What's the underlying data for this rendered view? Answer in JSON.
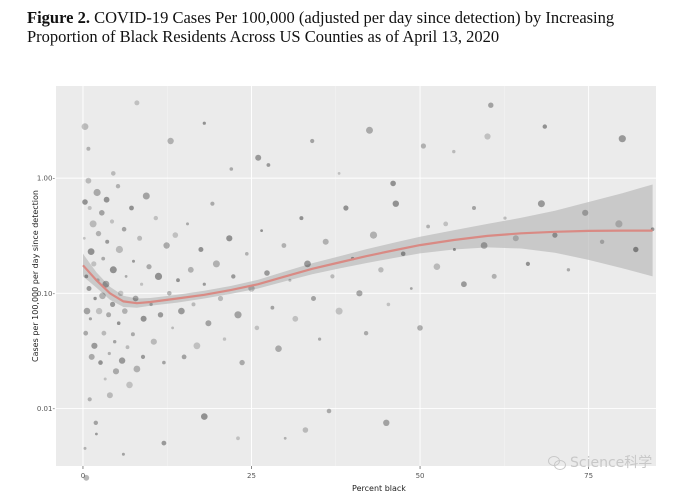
{
  "caption": {
    "label": "Figure 2.",
    "text": "COVID-19 Cases Per 100,000 (adjusted per day since detection) by Increasing Proportion of Black Residents Across US Counties as of April 13, 2020"
  },
  "watermark": "Science科学",
  "chart_data": {
    "type": "scatter",
    "title": "",
    "xlabel": "Percent black",
    "ylabel": "Cases per 100,000 per day since detection",
    "xlim": [
      -4,
      85
    ],
    "ylim_log10": [
      -2.5,
      0.8
    ],
    "y_scale": "log10",
    "x_ticks": [
      0,
      25,
      50,
      75
    ],
    "x_tick_labels": [
      "0",
      "25",
      "50",
      "75"
    ],
    "y_ticks": [
      1.0,
      0.1,
      0.01
    ],
    "y_tick_labels": [
      "1.00-",
      "0.10-",
      "0.01-"
    ],
    "colors": {
      "panel": "#ebebeb",
      "grid": "#ffffff",
      "point": "#000000",
      "trend": "#d98a84",
      "band": "#bdbdbd"
    },
    "points": [
      [
        0.2,
        0.3
      ],
      [
        0.3,
        0.62
      ],
      [
        0.5,
        0.14
      ],
      [
        0.6,
        0.07
      ],
      [
        0.4,
        0.045
      ],
      [
        0.3,
        0.0045
      ],
      [
        0.8,
        0.95
      ],
      [
        1.0,
        0.55
      ],
      [
        1.2,
        0.23
      ],
      [
        0.9,
        0.11
      ],
      [
        1.1,
        0.06
      ],
      [
        1.3,
        0.028
      ],
      [
        1.0,
        0.012
      ],
      [
        1.5,
        0.4
      ],
      [
        1.6,
        0.18
      ],
      [
        1.8,
        0.09
      ],
      [
        1.7,
        0.035
      ],
      [
        1.9,
        0.0075
      ],
      [
        2.1,
        0.75
      ],
      [
        2.3,
        0.33
      ],
      [
        2.2,
        0.13
      ],
      [
        2.4,
        0.07
      ],
      [
        2.6,
        0.025
      ],
      [
        2.0,
        0.006
      ],
      [
        2.8,
        0.5
      ],
      [
        3.0,
        0.2
      ],
      [
        2.9,
        0.095
      ],
      [
        3.1,
        0.045
      ],
      [
        3.3,
        0.018
      ],
      [
        3.5,
        0.65
      ],
      [
        3.6,
        0.28
      ],
      [
        3.4,
        0.12
      ],
      [
        3.8,
        0.065
      ],
      [
        3.9,
        0.03
      ],
      [
        4.0,
        0.013
      ],
      [
        4.3,
        0.42
      ],
      [
        4.5,
        0.16
      ],
      [
        4.4,
        0.08
      ],
      [
        4.7,
        0.038
      ],
      [
        4.9,
        0.021
      ],
      [
        5.2,
        0.85
      ],
      [
        5.4,
        0.24
      ],
      [
        5.6,
        0.1
      ],
      [
        5.3,
        0.055
      ],
      [
        5.8,
        0.026
      ],
      [
        6.1,
        0.36
      ],
      [
        6.4,
        0.14
      ],
      [
        6.2,
        0.07
      ],
      [
        6.6,
        0.034
      ],
      [
        6.9,
        0.016
      ],
      [
        7.2,
        0.55
      ],
      [
        7.5,
        0.19
      ],
      [
        7.8,
        0.09
      ],
      [
        7.4,
        0.044
      ],
      [
        8.0,
        0.022
      ],
      [
        8.4,
        0.3
      ],
      [
        8.7,
        0.12
      ],
      [
        9.0,
        0.06
      ],
      [
        8.9,
        0.028
      ],
      [
        9.4,
        0.7
      ],
      [
        9.8,
        0.17
      ],
      [
        10.1,
        0.08
      ],
      [
        10.5,
        0.038
      ],
      [
        10.8,
        0.45
      ],
      [
        11.2,
        0.14
      ],
      [
        11.5,
        0.065
      ],
      [
        12.0,
        0.025
      ],
      [
        12.4,
        0.26
      ],
      [
        12.8,
        0.1
      ],
      [
        13.3,
        0.05
      ],
      [
        13.7,
        0.32
      ],
      [
        14.1,
        0.13
      ],
      [
        14.6,
        0.07
      ],
      [
        15.0,
        0.028
      ],
      [
        15.5,
        0.4
      ],
      [
        16.0,
        0.16
      ],
      [
        16.4,
        0.08
      ],
      [
        16.9,
        0.035
      ],
      [
        17.5,
        0.24
      ],
      [
        18.0,
        0.12
      ],
      [
        18.6,
        0.055
      ],
      [
        19.2,
        0.6
      ],
      [
        19.8,
        0.18
      ],
      [
        20.4,
        0.09
      ],
      [
        21.0,
        0.04
      ],
      [
        21.7,
        0.3
      ],
      [
        22.3,
        0.14
      ],
      [
        23.0,
        0.065
      ],
      [
        23.6,
        0.025
      ],
      [
        24.3,
        0.22
      ],
      [
        25.0,
        0.11
      ],
      [
        25.8,
        0.05
      ],
      [
        26.5,
        0.35
      ],
      [
        27.3,
        0.15
      ],
      [
        28.1,
        0.075
      ],
      [
        29.0,
        0.033
      ],
      [
        29.8,
        0.26
      ],
      [
        30.7,
        0.13
      ],
      [
        31.5,
        0.06
      ],
      [
        32.4,
        0.45
      ],
      [
        33.3,
        0.18
      ],
      [
        34.2,
        0.09
      ],
      [
        35.1,
        0.04
      ],
      [
        36.0,
        0.28
      ],
      [
        37.0,
        0.14
      ],
      [
        38.0,
        0.07
      ],
      [
        39.0,
        0.55
      ],
      [
        40.0,
        0.2
      ],
      [
        41.0,
        0.1
      ],
      [
        42.0,
        0.045
      ],
      [
        43.1,
        0.32
      ],
      [
        44.2,
        0.16
      ],
      [
        45.3,
        0.08
      ],
      [
        46.4,
        0.6
      ],
      [
        47.5,
        0.22
      ],
      [
        48.7,
        0.11
      ],
      [
        50.0,
        0.05
      ],
      [
        51.2,
        0.38
      ],
      [
        52.5,
        0.17
      ],
      [
        53.8,
        0.4
      ],
      [
        55.1,
        0.24
      ],
      [
        56.5,
        0.12
      ],
      [
        58.0,
        0.55
      ],
      [
        59.5,
        0.26
      ],
      [
        61.0,
        0.14
      ],
      [
        62.6,
        0.45
      ],
      [
        64.2,
        0.3
      ],
      [
        66.0,
        0.18
      ],
      [
        68.0,
        0.6
      ],
      [
        70.0,
        0.32
      ],
      [
        72.0,
        0.16
      ],
      [
        74.5,
        0.5
      ],
      [
        77.0,
        0.28
      ],
      [
        79.5,
        0.4
      ],
      [
        82.0,
        0.24
      ],
      [
        84.5,
        0.36
      ],
      [
        45.0,
        0.0075
      ],
      [
        36.5,
        0.0095
      ],
      [
        30.0,
        0.0055
      ],
      [
        33.0,
        0.0065
      ],
      [
        23.0,
        0.0055
      ],
      [
        18.0,
        0.0085
      ],
      [
        12.0,
        0.005
      ],
      [
        6.0,
        0.004
      ],
      [
        0.5,
        0.0025
      ],
      [
        0.8,
        1.8
      ],
      [
        0.3,
        2.8
      ],
      [
        8.0,
        4.5
      ],
      [
        18.0,
        3.0
      ],
      [
        26.0,
        1.5
      ],
      [
        34.0,
        2.1
      ],
      [
        42.5,
        2.6
      ],
      [
        50.5,
        1.9
      ],
      [
        55.0,
        1.7
      ],
      [
        60.0,
        2.3
      ],
      [
        68.5,
        2.8
      ],
      [
        80.0,
        2.2
      ],
      [
        60.5,
        4.3
      ],
      [
        22.0,
        1.2
      ],
      [
        13.0,
        2.1
      ],
      [
        4.5,
        1.1
      ],
      [
        38.0,
        1.1
      ],
      [
        46.0,
        0.9
      ],
      [
        27.5,
        1.3
      ]
    ],
    "trend": [
      [
        0.0,
        0.175
      ],
      [
        2.0,
        0.13
      ],
      [
        4.0,
        0.1
      ],
      [
        6.0,
        0.085
      ],
      [
        8.0,
        0.082
      ],
      [
        10.0,
        0.084
      ],
      [
        14.0,
        0.09
      ],
      [
        18.0,
        0.097
      ],
      [
        22.0,
        0.107
      ],
      [
        26.0,
        0.12
      ],
      [
        30.0,
        0.14
      ],
      [
        34.0,
        0.163
      ],
      [
        38.0,
        0.185
      ],
      [
        42.0,
        0.21
      ],
      [
        46.0,
        0.235
      ],
      [
        50.0,
        0.262
      ],
      [
        55.0,
        0.29
      ],
      [
        60.0,
        0.315
      ],
      [
        65.0,
        0.332
      ],
      [
        70.0,
        0.342
      ],
      [
        75.0,
        0.348
      ],
      [
        80.0,
        0.35
      ],
      [
        84.5,
        0.35
      ]
    ],
    "band_lower": [
      [
        0.0,
        0.14
      ],
      [
        2.0,
        0.112
      ],
      [
        4.0,
        0.088
      ],
      [
        6.0,
        0.076
      ],
      [
        8.0,
        0.075
      ],
      [
        10.0,
        0.078
      ],
      [
        14.0,
        0.083
      ],
      [
        18.0,
        0.09
      ],
      [
        22.0,
        0.099
      ],
      [
        26.0,
        0.11
      ],
      [
        30.0,
        0.127
      ],
      [
        34.0,
        0.146
      ],
      [
        38.0,
        0.164
      ],
      [
        42.0,
        0.183
      ],
      [
        46.0,
        0.202
      ],
      [
        50.0,
        0.222
      ],
      [
        55.0,
        0.24
      ],
      [
        60.0,
        0.25
      ],
      [
        65.0,
        0.245
      ],
      [
        70.0,
        0.225
      ],
      [
        75.0,
        0.195
      ],
      [
        80.0,
        0.165
      ],
      [
        84.5,
        0.14
      ]
    ],
    "band_upper": [
      [
        0.0,
        0.22
      ],
      [
        2.0,
        0.152
      ],
      [
        4.0,
        0.114
      ],
      [
        6.0,
        0.095
      ],
      [
        8.0,
        0.09
      ],
      [
        10.0,
        0.091
      ],
      [
        14.0,
        0.097
      ],
      [
        18.0,
        0.105
      ],
      [
        22.0,
        0.116
      ],
      [
        26.0,
        0.131
      ],
      [
        30.0,
        0.155
      ],
      [
        34.0,
        0.182
      ],
      [
        38.0,
        0.209
      ],
      [
        42.0,
        0.241
      ],
      [
        46.0,
        0.274
      ],
      [
        50.0,
        0.31
      ],
      [
        55.0,
        0.352
      ],
      [
        60.0,
        0.4
      ],
      [
        65.0,
        0.452
      ],
      [
        70.0,
        0.52
      ],
      [
        75.0,
        0.62
      ],
      [
        80.0,
        0.74
      ],
      [
        84.5,
        0.88
      ]
    ]
  }
}
